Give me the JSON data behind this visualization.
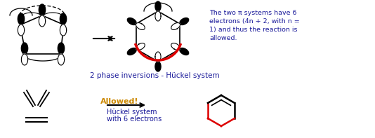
{
  "bg_color": "#ffffff",
  "black": "#000000",
  "red": "#dd0000",
  "blue": "#1a1a9a",
  "orange": "#cc8800",
  "text1": "The two π systems have 6",
  "text2": "electrons (4n + 2, with n =",
  "text3": "1) and thus the reaction is",
  "text4": "allowed.",
  "phase_text": "2 phase inversions - Hückel system",
  "allowed": "Allowed!",
  "huckel": "Hückel system",
  "electrons": "with 6 electrons"
}
